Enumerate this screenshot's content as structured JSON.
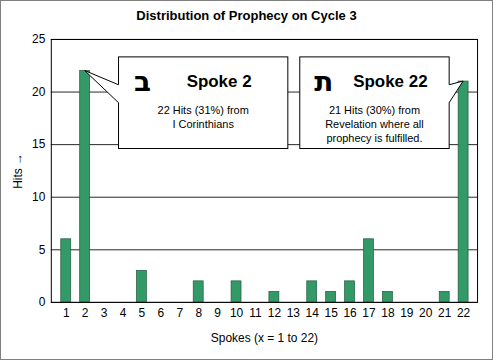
{
  "chart_data": {
    "type": "bar",
    "title": "Distribution of Prophecy on Cycle 3",
    "x_label": "Spokes (x = 1 to 22)",
    "y_label": "Hits",
    "categories": [
      1,
      2,
      3,
      4,
      5,
      6,
      7,
      8,
      9,
      10,
      11,
      12,
      13,
      14,
      15,
      16,
      17,
      18,
      19,
      20,
      21,
      22
    ],
    "values": [
      6,
      22,
      0,
      0,
      3,
      0,
      0,
      2,
      0,
      2,
      0,
      1,
      0,
      2,
      1,
      2,
      6,
      1,
      0,
      0,
      1,
      21
    ],
    "color": "#339966",
    "ylim": [
      0,
      25
    ],
    "yticks": [
      0,
      5,
      10,
      15,
      20,
      25
    ],
    "grid": true,
    "annotations": [
      {
        "x": 2,
        "letter": "ב",
        "label": "Spoke 2",
        "text": [
          "22 Hits (31%) from",
          "I Corinthians"
        ]
      },
      {
        "x": 22,
        "letter": "ת",
        "label": "Spoke 22",
        "text": [
          "21 Hits (30%) from",
          "Revelation where all",
          "prophecy is fulfilled."
        ]
      }
    ]
  }
}
